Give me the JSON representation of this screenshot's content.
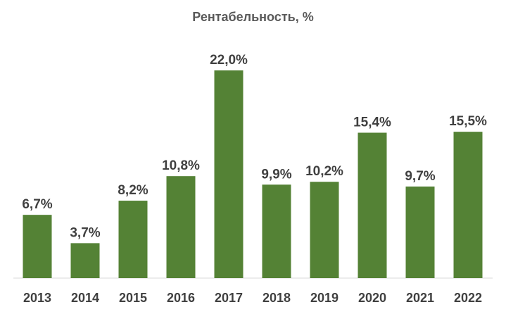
{
  "chart_data": {
    "type": "bar",
    "title": "Рентабельность, %",
    "categories": [
      "2013",
      "2014",
      "2015",
      "2016",
      "2017",
      "2018",
      "2019",
      "2020",
      "2021",
      "2022"
    ],
    "values": [
      6.7,
      3.7,
      8.2,
      10.8,
      22.0,
      9.9,
      10.2,
      15.4,
      9.7,
      15.5
    ],
    "data_labels": [
      "6,7%",
      "3,7%",
      "8,2%",
      "10,8%",
      "22,0%",
      "9,9%",
      "10,2%",
      "15,4%",
      "9,7%",
      "15,5%"
    ],
    "ylim": [
      0,
      22.0
    ],
    "grid": false,
    "legend": "none",
    "bar_color": "#548235",
    "axis_color": "#d9d9d9"
  }
}
